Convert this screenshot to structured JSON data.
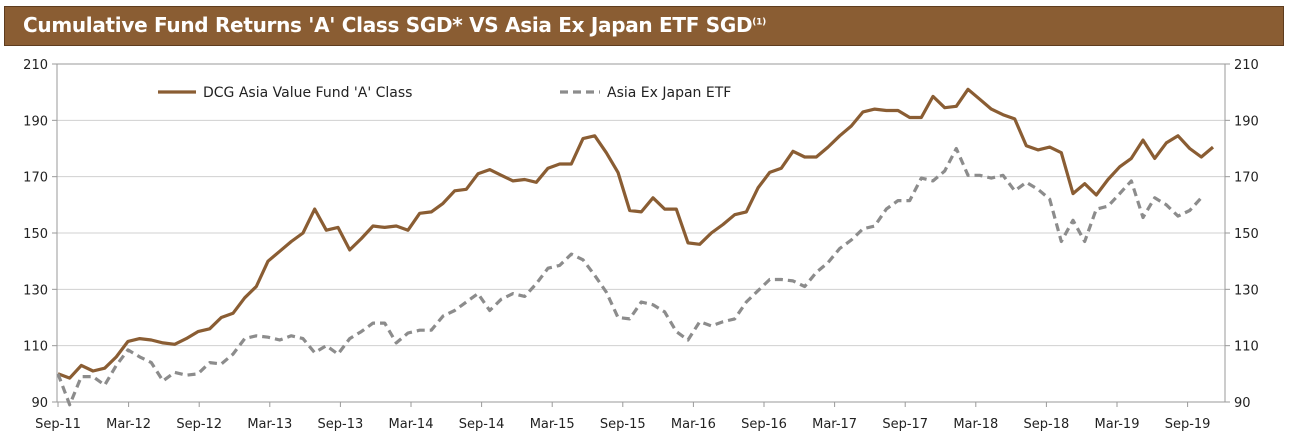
{
  "title": {
    "main": "Cumulative Fund Returns 'A' Class SGD* VS Asia Ex Japan ETF SGD",
    "superscript": "(1)"
  },
  "colors": {
    "title_bg": "#8a5d33",
    "fund": "#8a5d33",
    "etf": "#8c8c8c"
  },
  "chart_data": {
    "type": "line",
    "ylim": [
      90,
      210
    ],
    "yticks_left": [
      "210",
      "190",
      "170",
      "150",
      "130",
      "110",
      "90"
    ],
    "yticks_right": [
      "210",
      "190",
      "170",
      "150",
      "130",
      "110",
      "90"
    ],
    "xticks": [
      "Sep-11",
      "Mar-12",
      "Sep-12",
      "Mar-13",
      "Sep-13",
      "Mar-14",
      "Sep-14",
      "Mar-15",
      "Sep-15",
      "Mar-16",
      "Sep-16",
      "Mar-17",
      "Sep-17",
      "Mar-18",
      "Sep-18",
      "Mar-19",
      "Sep-19"
    ],
    "legend": {
      "placement": "top-left"
    },
    "grid": true,
    "series": [
      {
        "name": "DCG Asia Value Fund 'A' Class",
        "style": "solid",
        "values": [
          100,
          98.5,
          103,
          101,
          102,
          106,
          111.5,
          112.5,
          112,
          111,
          110.5,
          112.5,
          115,
          116,
          120,
          121.5,
          127,
          131,
          140,
          143.5,
          147,
          150,
          158.5,
          151,
          152,
          144,
          148,
          152.5,
          152,
          152.5,
          151,
          157,
          157.5,
          160.5,
          165,
          165.5,
          171,
          172.5,
          170.5,
          168.5,
          169,
          168,
          173,
          174.5,
          174.5,
          183.5,
          184.5,
          178.5,
          171.5,
          158,
          157.5,
          162.5,
          158.5,
          158.5,
          146.5,
          146,
          150,
          153,
          156.5,
          157.5,
          166,
          171.5,
          173,
          179,
          177,
          177,
          180.5,
          184.5,
          188,
          193,
          194,
          193.5,
          193.5,
          191,
          191,
          198.5,
          194.5,
          195,
          201,
          197.5,
          194,
          192,
          190.5,
          181,
          179.5,
          180.5,
          178.5,
          164,
          167.5,
          163.5,
          169,
          173.5,
          176.5,
          183,
          176.5,
          182,
          184.5,
          180,
          177,
          180.5
        ]
      },
      {
        "name": "Asia Ex Japan ETF",
        "style": "dashed",
        "values": [
          100,
          89,
          99,
          99,
          96,
          103,
          108.5,
          106,
          104,
          97.5,
          100.5,
          99.5,
          100,
          104,
          103.5,
          107,
          112.5,
          113.5,
          113,
          112,
          113.5,
          112.5,
          107.5,
          110,
          107,
          112.5,
          115,
          118,
          118,
          111,
          114.5,
          115.5,
          115.5,
          120.5,
          122.5,
          125.5,
          128.5,
          122.5,
          126.5,
          128.5,
          127.5,
          132,
          137.5,
          138.5,
          142.5,
          140.5,
          135,
          129,
          120,
          119.5,
          125.5,
          124.5,
          122,
          115,
          112,
          118.5,
          117,
          118.5,
          119.5,
          125.5,
          129.5,
          133.5,
          133.5,
          133,
          131,
          136,
          139.5,
          144.5,
          147.5,
          151.5,
          152.5,
          158.5,
          161.5,
          161.5,
          169.5,
          168.5,
          172,
          180,
          170.5,
          170.5,
          169.5,
          170.5,
          165,
          168,
          165.5,
          162,
          147,
          154.5,
          147,
          158.5,
          159.5,
          164,
          168.5,
          155.5,
          162.5,
          160,
          156,
          158,
          162.5
        ]
      }
    ]
  }
}
